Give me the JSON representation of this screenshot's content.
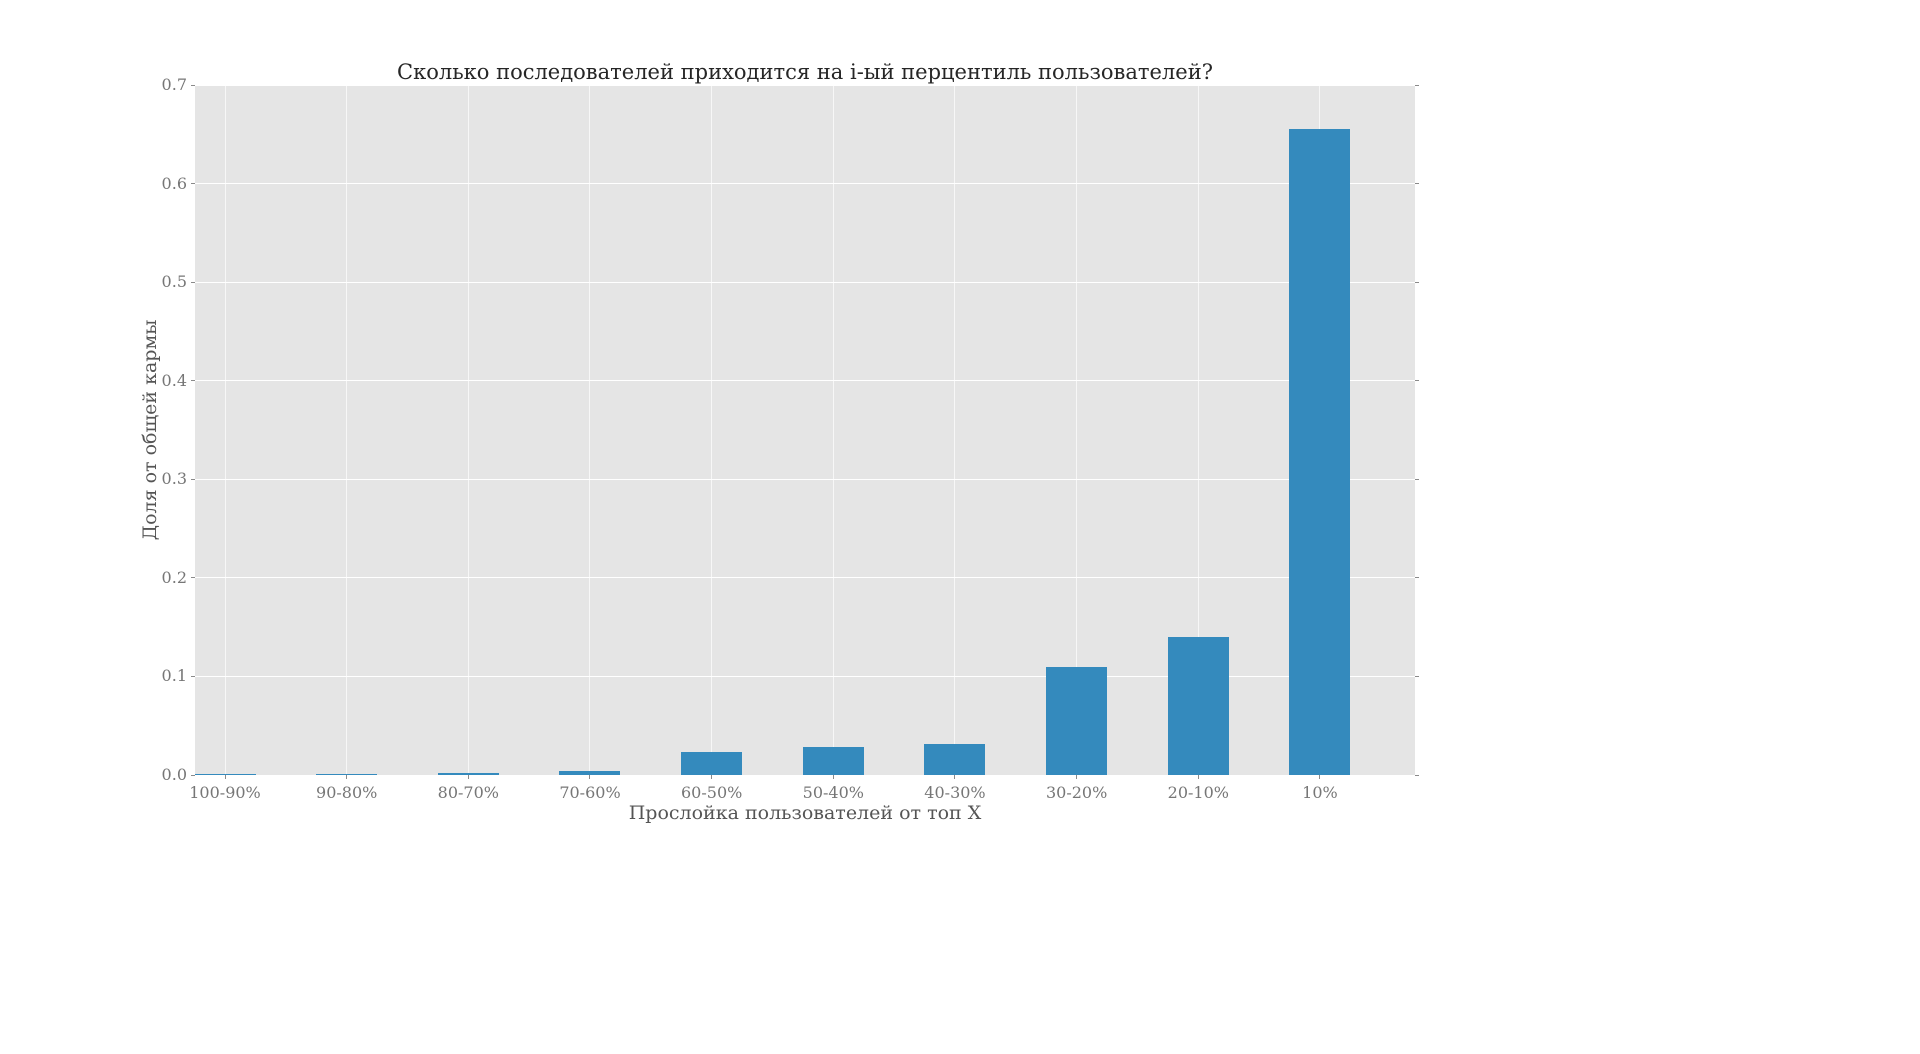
{
  "chart_data": {
    "type": "bar",
    "title": "Сколько последователей приходится на i-ый перцентиль пользователей?",
    "xlabel": "Прослойка пользователей от топ X",
    "ylabel": "Доля от общей кармы",
    "categories": [
      "100-90%",
      "90-80%",
      "80-70%",
      "70-60%",
      "60-50%",
      "50-40%",
      "40-30%",
      "30-20%",
      "20-10%",
      "10%"
    ],
    "values": [
      0.001,
      0.001,
      0.002,
      0.004,
      0.023,
      0.028,
      0.031,
      0.11,
      0.14,
      0.655
    ],
    "ylim": [
      0,
      0.7
    ],
    "yticks": [
      0.0,
      0.1,
      0.2,
      0.3,
      0.4,
      0.5,
      0.6,
      0.7
    ],
    "ytick_format_decimals": 1,
    "bar_color": "#348abd",
    "plot_bg": "#e5e5e5",
    "grid": true,
    "legend": null
  }
}
